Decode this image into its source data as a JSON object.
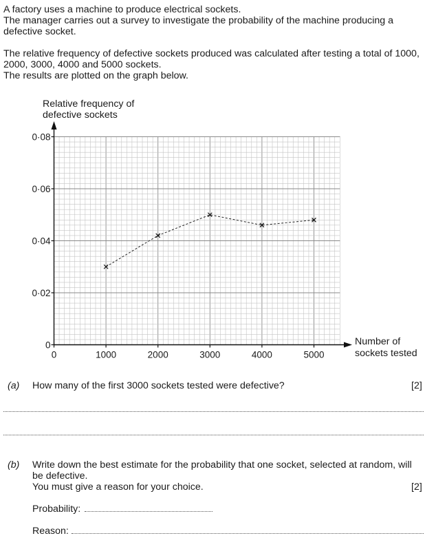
{
  "intro": {
    "line1": "A factory uses a machine to produce electrical sockets.",
    "line2": "The manager carries out a survey to investigate the probability of the machine producing a defective socket.",
    "line3": "The relative frequency of defective sockets produced was calculated after testing a total of 1000, 2000, 3000, 4000 and 5000 sockets.",
    "line4": "The results are plotted on the graph below."
  },
  "chart_data": {
    "type": "line",
    "x": [
      1000,
      2000,
      3000,
      4000,
      5000
    ],
    "y": [
      0.03,
      0.042,
      0.05,
      0.046,
      0.048
    ],
    "xlim": [
      0,
      5500
    ],
    "ylim": [
      0,
      0.08
    ],
    "x_ticks": [
      "0",
      "1000",
      "2000",
      "3000",
      "4000",
      "5000"
    ],
    "y_ticks": [
      "0",
      "0·02",
      "0·04",
      "0·06",
      "0·08"
    ],
    "ylabel_line1": "Relative frequency of",
    "ylabel_line2": "defective sockets",
    "xlabel_line1": "Number of",
    "xlabel_line2": "sockets tested",
    "grid": true,
    "line_style": "dashed",
    "marker": "cross"
  },
  "questions": {
    "a": {
      "label": "(a)",
      "text": "How many of the first 3000 sockets tested were defective?",
      "marks": "[2]"
    },
    "b": {
      "label": "(b)",
      "text_line1": "Write down the best estimate for the probability that one socket, selected at random, will be defective.",
      "text_line2": "You must give a reason for your choice.",
      "marks": "[2]",
      "probability_label": "Probability:",
      "reason_label": "Reason:"
    }
  }
}
